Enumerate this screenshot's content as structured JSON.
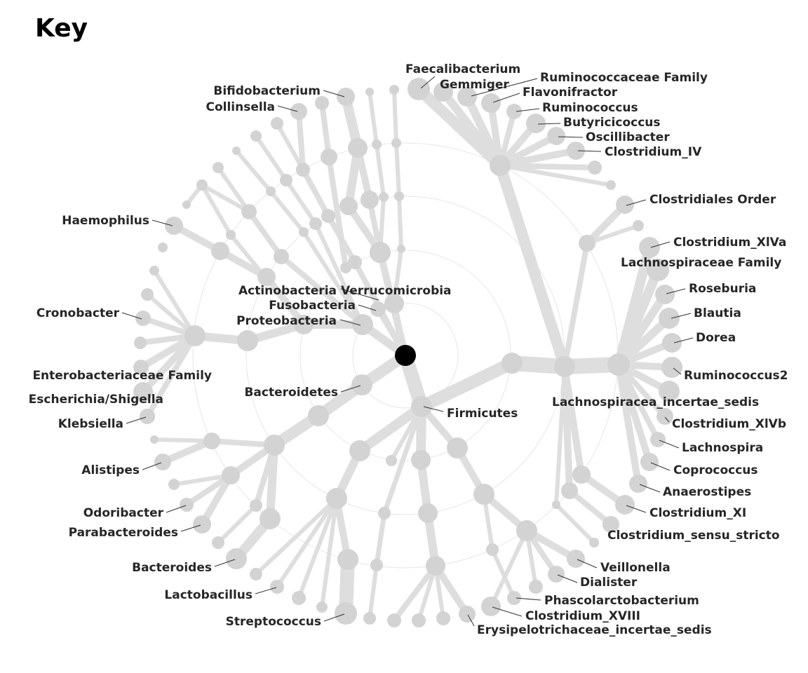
{
  "title": "Key",
  "diagram": {
    "type": "radial-taxonomy-tree",
    "style": {
      "branch_color": "#dedede",
      "node_color": "#d3d3d3",
      "root_color": "#000000",
      "ring_color": "#e6e6e6",
      "label_color": "#262626"
    },
    "labels": {
      "faecalibacterium": "Faecalibacterium",
      "gemmiger": "Gemmiger",
      "ruminococcaceae_family": "Ruminococcaceae Family",
      "flavonifractor": "Flavonifractor",
      "ruminococcus": "Ruminococcus",
      "butyricicoccus": "Butyricicoccus",
      "oscillibacter": "Oscillibacter",
      "clostridium_iv": "Clostridium_IV",
      "clostridiales_order": "Clostridiales Order",
      "clostridium_xlva": "Clostridium_XlVa",
      "lachnospiraceae_family": "Lachnospiraceae Family",
      "roseburia": "Roseburia",
      "blautia": "Blautia",
      "dorea": "Dorea",
      "ruminococcus2": "Ruminococcus2",
      "lachnospiracea_incertae_sedis": "Lachnospiracea_incertae_sedis",
      "clostridium_xlvb": "Clostridium_XlVb",
      "lachnospira": "Lachnospira",
      "coprococcus": "Coprococcus",
      "anaerostipes": "Anaerostipes",
      "clostridium_xi": "Clostridium_XI",
      "clostridium_sensu_stricto": "Clostridium_sensu_stricto",
      "veillonella": "Veillonella",
      "dialister": "Dialister",
      "phascolarctobacterium": "Phascolarctobacterium",
      "clostridium_xviii": "Clostridium_XVIII",
      "erysipelotrichaceae_incertae_sedis": "Erysipelotrichaceae_incertae_sedis",
      "streptococcus": "Streptococcus",
      "lactobacillus": "Lactobacillus",
      "bacteroides": "Bacteroides",
      "parabacteroides": "Parabacteroides",
      "odoribacter": "Odoribacter",
      "alistipes": "Alistipes",
      "klebsiella": "Klebsiella",
      "escherichia_shigella": "Escherichia/Shigella",
      "enterobacteriaceae_family": "Enterobacteriaceae Family",
      "cronobacter": "Cronobacter",
      "haemophilus": "Haemophilus",
      "collinsella": "Collinsella",
      "bifidobacterium": "Bifidobacterium",
      "actinobacteria": "Actinobacteria",
      "verrucomicrobia": "Verrucomicrobia",
      "fusobacteria": "Fusobacteria",
      "proteobacteria": "Proteobacteria",
      "bacteroidetes": "Bacteroidetes",
      "firmicutes": "Firmicutes"
    }
  }
}
